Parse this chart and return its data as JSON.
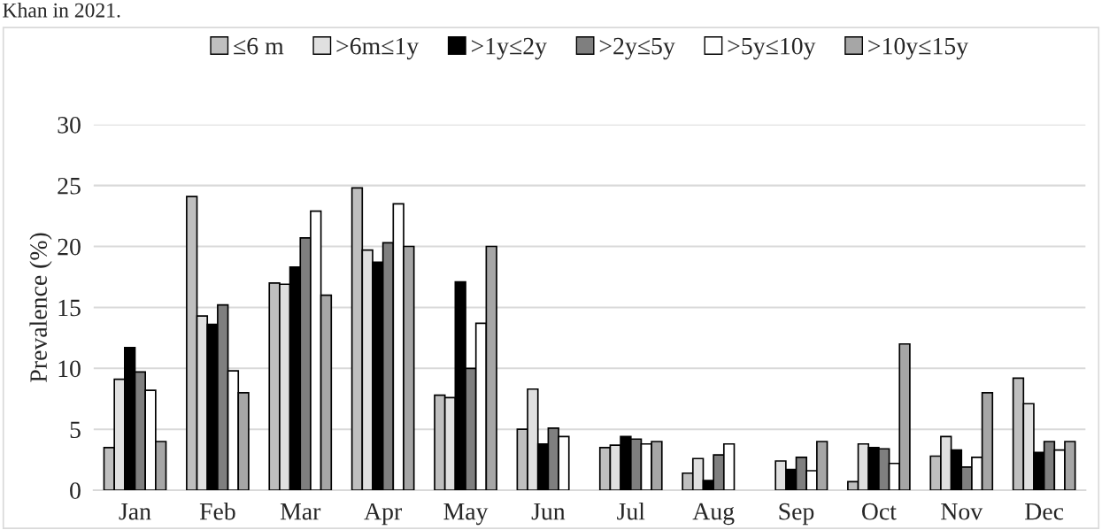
{
  "chart_data": {
    "type": "bar",
    "ylabel": "Prevalence (%)",
    "categories": [
      "Jan",
      "Feb",
      "Mar",
      "Apr",
      "May",
      "Jun",
      "Jul",
      "Aug",
      "Sep",
      "Oct",
      "Nov",
      "Dec"
    ],
    "series": [
      {
        "name": "≤6 m",
        "color": "#bfbfbf",
        "values": [
          3.5,
          24.1,
          17,
          24.8,
          7.8,
          5,
          3.5,
          1.4,
          0,
          0.7,
          2.8,
          9.2
        ]
      },
      {
        "name": ">6m≤1y",
        "color": "#e0e0e0",
        "values": [
          9.1,
          14.3,
          16.9,
          19.7,
          7.6,
          8.3,
          3.7,
          2.6,
          2.4,
          3.8,
          4.4,
          7.1
        ]
      },
      {
        "name": ">1y≤2y",
        "color": "#000000",
        "values": [
          11.7,
          13.6,
          18.3,
          18.7,
          17.1,
          3.8,
          4.4,
          0.8,
          1.7,
          3.5,
          3.3,
          3.1
        ]
      },
      {
        "name": ">2y≤5y",
        "color": "#7f7f7f",
        "values": [
          9.7,
          15.2,
          20.7,
          20.3,
          10,
          5.1,
          4.2,
          2.9,
          2.7,
          3.4,
          1.9,
          4
        ]
      },
      {
        "name": ">5y≤10y",
        "color": "#ffffff",
        "values": [
          8.2,
          9.8,
          22.9,
          23.5,
          13.7,
          4.4,
          3.8,
          3.8,
          1.6,
          2.2,
          2.7,
          3.3
        ]
      },
      {
        "name": ">10y≤15y",
        "color": "#a6a6a6",
        "values": [
          4,
          8,
          16,
          20,
          20,
          0,
          4,
          0,
          4,
          12,
          8,
          4
        ]
      }
    ],
    "ylim": [
      0,
      30
    ],
    "yticks": [
      0,
      5,
      10,
      15,
      20,
      25,
      30
    ],
    "grid": "y",
    "legend": "top",
    "annotations": [
      "Khan in 2021."
    ]
  }
}
